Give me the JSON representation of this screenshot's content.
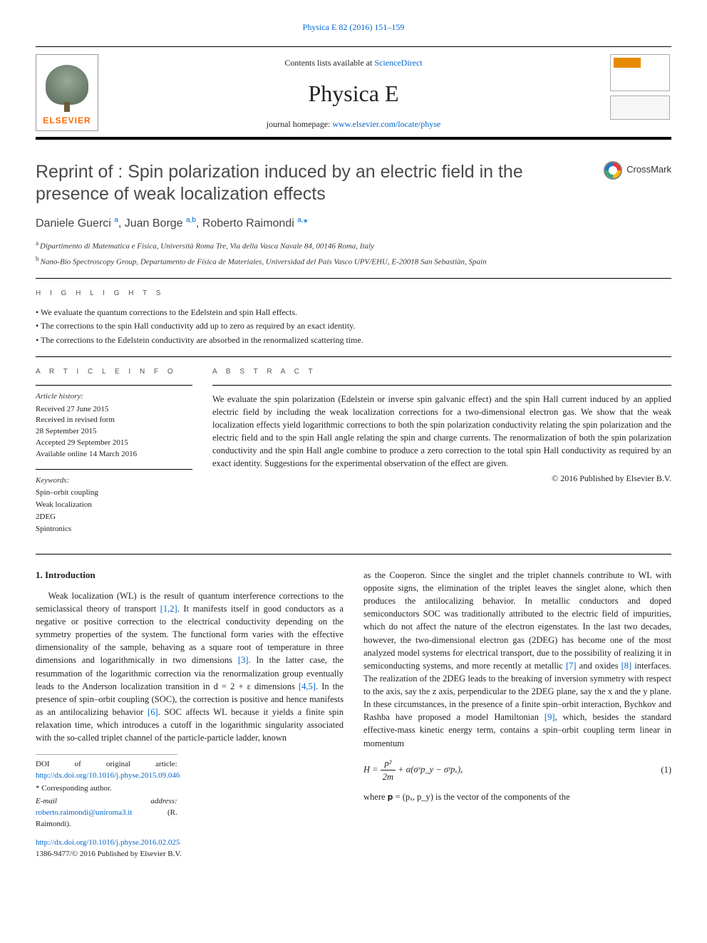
{
  "top_citation": "Physica E 82 (2016) 151–159",
  "masthead": {
    "availability_prefix": "Contents lists available at ",
    "availability_link": "ScienceDirect",
    "journal_name": "Physica E",
    "homepage_prefix": "journal homepage: ",
    "homepage_url": "www.elsevier.com/locate/physe",
    "publisher_brand": "ELSEVIER"
  },
  "crossmark_label": "CrossMark",
  "title": "Reprint of : Spin polarization induced by an electric field in the presence of weak localization effects",
  "authors_html": "Daniele Guerci <sup>a</sup>, Juan Borge <sup>a,b</sup>, Roberto Raimondi <sup>a,</sup><span class='ast'>*</span>",
  "affiliations": {
    "a": "Dipartimento di Matematica e Fisica, Università Roma Tre, Via della Vasca Navale 84, 00146 Roma, Italy",
    "b": "Nano-Bio Spectroscopy Group, Departamento de Física de Materiales, Universidad del País Vasco UPV/EHU, E-20018 San Sebastiàn, Spain"
  },
  "highlights": {
    "label": "H I G H L I G H T S",
    "items": [
      "We evaluate the quantum corrections to the Edelstein and spin Hall effects.",
      "The corrections to the spin Hall conductivity add up to zero as required by an exact identity.",
      "The corrections to the Edelstein conductivity are absorbed in the renormalized scattering time."
    ]
  },
  "article_info": {
    "label": "A R T I C L E  I N F O",
    "history_head": "Article history:",
    "history": [
      "Received 27 June 2015",
      "Received in revised form",
      "28 September 2015",
      "Accepted 29 September 2015",
      "Available online 14 March 2016"
    ],
    "keywords_head": "Keywords:",
    "keywords": [
      "Spin–orbit coupling",
      "Weak localization",
      "2DEG",
      "Spintronics"
    ]
  },
  "abstract": {
    "label": "A B S T R A C T",
    "text": "We evaluate the spin polarization (Edelstein or inverse spin galvanic effect) and the spin Hall current induced by an applied electric field by including the weak localization corrections for a two-dimensional electron gas. We show that the weak localization effects yield logarithmic corrections to both the spin polarization conductivity relating the spin polarization and the electric field and to the spin Hall angle relating the spin and charge currents. The renormalization of both the spin polarization conductivity and the spin Hall angle combine to produce a zero correction to the total spin Hall conductivity as required by an exact identity. Suggestions for the experimental observation of the effect are given.",
    "copyright": "© 2016 Published by Elsevier B.V."
  },
  "intro": {
    "heading": "1.  Introduction",
    "p1_a": "Weak localization (WL) is the result of quantum interference corrections to the semiclassical theory of transport ",
    "p1_ref1": "[1,2]",
    "p1_b": ". It manifests itself in good conductors as a negative or positive correction to the electrical conductivity depending on the symmetry properties of the system. The functional form varies with the effective dimensionality of the sample, behaving as a square root of temperature in three dimensions and logarithmically in two dimensions ",
    "p1_ref2": "[3]",
    "p1_c": ". In the latter case, the resummation of the logarithmic correction via the renormalization group eventually leads to the Anderson localization transition in d = 2 + ε dimensions ",
    "p1_ref3": "[4,5]",
    "p1_d": ". In the presence of spin–orbit coupling (SOC), the correction is positive and hence manifests as an antilocalizing behavior ",
    "p1_ref4": "[6]",
    "p1_e": ". SOC affects WL because it yields a finite spin relaxation time, which introduces a cutoff in the logarithmic singularity associated with the so-called triplet channel of the particle-particle ladder, known",
    "p2_a": "as the Cooperon. Since the singlet and the triplet channels contribute to WL with opposite signs, the elimination of the triplet leaves the singlet alone, which then produces the antilocalizing behavior. In metallic conductors and doped semiconductors SOC was traditionally attributed to the electric field of impurities, which do not affect the nature of the electron eigenstates. In the last two decades, however, the two-dimensional electron gas (2DEG) has become one of the most analyzed model systems for electrical transport, due to the possibility of realizing it in semiconducting systems, and more recently at metallic ",
    "p2_ref1": "[7]",
    "p2_b": " and oxides ",
    "p2_ref2": "[8]",
    "p2_c": " interfaces. The realization of the 2DEG leads to the breaking of inversion symmetry with respect to the axis, say the z axis, perpendicular to the 2DEG plane, say the x and the y plane. In these circumstances, in the presence of a finite spin–orbit interaction, Bychkov and Rashba have proposed a model Hamiltonian ",
    "p2_ref3": "[9]",
    "p2_d": ", which, besides the standard effective-mass kinetic energy term, contains a spin–orbit coupling term linear in momentum",
    "eq_after": "where  𝐩 = (pₓ, p_y)  is the vector of the components of the"
  },
  "equation": {
    "num": "(1)",
    "frac_num": "p²",
    "frac_den": "2m",
    "rest": " + α(σˣp_y − σʸpₓ),"
  },
  "footnotes": {
    "doi_orig_label": "DOI of original article: ",
    "doi_orig": "http://dx.doi.org/10.1016/j.physe.2015.09.046",
    "corr": "* Corresponding author.",
    "email_label": "E-mail address: ",
    "email": "roberto.raimondi@uniroma3.it",
    "email_who": " (R. Raimondi)."
  },
  "bottom": {
    "doi": "http://dx.doi.org/10.1016/j.physe.2016.02.025",
    "issn_line": "1386-9477/© 2016 Published by Elsevier B.V."
  },
  "colors": {
    "link": "#0066cc",
    "brand_orange": "#ff6a00",
    "rule": "#000000",
    "text": "#222222",
    "muted": "#555555"
  }
}
